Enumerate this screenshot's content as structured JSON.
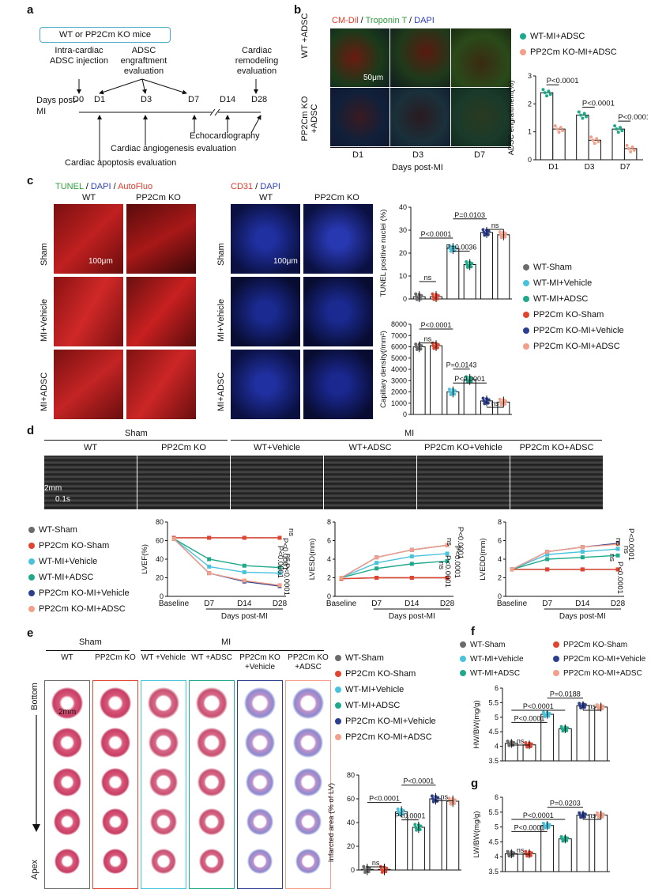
{
  "colors": {
    "wt_sham": "#6b6b6b",
    "ko_sham": "#e2452f",
    "wt_vehicle": "#49c3dd",
    "wt_adsc": "#1fa98a",
    "ko_vehicle": "#2c3f8f",
    "ko_adsc": "#f2a08a"
  },
  "panel_a": {
    "label": "a",
    "box_title": "WT or PP2Cm KO mice",
    "event_injection": "Intra-cardiac ADSC injection",
    "event_engraft": "ADSC engraftment evaluation",
    "event_remodel": "Cardiac remodeling evaluation",
    "days_label": "Days post-MI",
    "days": [
      "D0",
      "D1",
      "D3",
      "D7",
      "D14",
      "D28"
    ],
    "echo": "Echocardiography",
    "angio": "Cardiac angiogenesis evaluation",
    "apop": "Cardiac apoptosis evaluation"
  },
  "panel_b": {
    "label": "b",
    "stain_cm": "CM-Dil",
    "stain_trop": "Troponin T",
    "stain_dapi": "DAPI",
    "row_wt": "WT +ADSC",
    "row_ko": "PP2Cm KO +ADSC",
    "cols": [
      "D1",
      "D3",
      "D7"
    ],
    "xlabel": "Days post-MI",
    "scale": "50μm",
    "legend": [
      "WT-MI+ADSC",
      "PP2Cm KO-MI+ADSC"
    ]
  },
  "panel_c": {
    "label": "c",
    "tunel": "TUNEL",
    "dapi": "DAPI",
    "autofluo": "AutoFluo",
    "cd31": "CD31",
    "cols": [
      "WT",
      "PP2Cm KO"
    ],
    "rows": [
      "Sham",
      "MI+Vehicle",
      "MI+ADSC"
    ],
    "scale": "100μm",
    "legend": [
      "WT-Sham",
      "WT-MI+Vehicle",
      "WT-MI+ADSC",
      "PP2Cm KO-Sham",
      "PP2Cm KO-MI+Vehicle",
      "PP2Cm KO-MI+ADSC"
    ]
  },
  "panel_d": {
    "label": "d",
    "sham": "Sham",
    "mi": "MI",
    "cols": [
      "WT",
      "PP2Cm KO",
      "WT+Vehicle",
      "WT+ADSC",
      "PP2Cm KO+Vehicle",
      "PP2Cm KO+ADSC"
    ],
    "scale_mm": "2mm",
    "scale_s": "0.1s",
    "legend": [
      "WT-Sham",
      "PP2Cm KO-Sham",
      "WT-MI+Vehicle",
      "WT-MI+ADSC",
      "PP2Cm KO-MI+Vehicle",
      "PP2Cm KO-MI+ADSC"
    ]
  },
  "panel_e": {
    "label": "e",
    "sham": "Sham",
    "mi": "MI",
    "cols": [
      "WT",
      "PP2Cm KO",
      "WT +Vehicle",
      "WT +ADSC",
      "PP2Cm KO +Vehicle",
      "PP2Cm KO +ADSC"
    ],
    "bottom": "Bottom",
    "apex": "Apex",
    "scale": "2mm",
    "legend": [
      "WT-Sham",
      "PP2Cm KO-Sham",
      "WT-MI+Vehicle",
      "WT-MI+ADSC",
      "PP2Cm KO-MI+Vehicle",
      "PP2Cm KO-MI+ADSC"
    ]
  },
  "panel_f": {
    "label": "f",
    "legend": [
      "WT-Sham",
      "PP2Cm KO-Sham",
      "WT-MI+Vehicle",
      "PP2Cm KO-MI+Vehicle",
      "WT-MI+ADSC",
      "PP2Cm KO-MI+ADSC"
    ]
  },
  "panel_g": {
    "label": "g"
  },
  "chart_data": [
    {
      "id": "adsc",
      "type": "bar",
      "ylabel": "ADSC engraftment(%)",
      "ylim": [
        0,
        3
      ],
      "yticks": [
        0,
        1,
        2,
        3
      ],
      "categories": [
        "D1",
        "D3",
        "D7"
      ],
      "series": [
        {
          "name": "WT-MI+ADSC",
          "values": [
            2.4,
            1.6,
            1.1
          ]
        },
        {
          "name": "PP2Cm KO-MI+ADSC",
          "values": [
            1.1,
            0.7,
            0.4
          ]
        }
      ],
      "annotations": [
        "P<0.0001",
        "P<0.0001",
        "P<0.0001"
      ]
    },
    {
      "id": "tunel",
      "type": "bar",
      "ylabel": "TUNEL positive nuclei (%)",
      "ylim": [
        0,
        40
      ],
      "yticks": [
        0,
        10,
        20,
        30,
        40
      ],
      "categories": [
        "WT-Sham",
        "PP2Cm KO-Sham",
        "WT-MI+Vehicle",
        "WT-MI+ADSC",
        "PP2Cm KO-MI+Vehicle",
        "PP2Cm KO-MI+ADSC"
      ],
      "values": [
        1,
        1,
        22,
        15,
        29,
        28
      ],
      "annotations": [
        "ns",
        "P<0.0001",
        "P=0.0036",
        "P=0.0103",
        "ns"
      ]
    },
    {
      "id": "cap",
      "type": "bar",
      "ylabel": "Capillary density(/mm²)",
      "ylim": [
        0,
        8000
      ],
      "yticks": [
        0,
        1000,
        2000,
        3000,
        4000,
        5000,
        6000,
        7000,
        8000
      ],
      "categories": [
        "WT-Sham",
        "PP2Cm KO-Sham",
        "WT-MI+Vehicle",
        "WT-MI+ADSC",
        "PP2Cm KO-MI+Vehicle",
        "PP2Cm KO-MI+ADSC"
      ],
      "values": [
        6000,
        6100,
        2000,
        3100,
        1200,
        1100
      ],
      "annotations": [
        "P<0.0001",
        "ns",
        "P=0.0143",
        "P<0.0001",
        "ns"
      ]
    },
    {
      "id": "lvef",
      "type": "line",
      "ylabel": "LVEF(%)",
      "xlabel": "Days post-MI",
      "ylim": [
        0,
        80
      ],
      "yticks": [
        0,
        20,
        40,
        60,
        80
      ],
      "x": [
        "Baseline",
        "D7",
        "D14",
        "D28"
      ],
      "series": [
        {
          "name": "WT-Sham",
          "values": [
            63,
            63,
            63,
            63
          ]
        },
        {
          "name": "PP2Cm KO-Sham",
          "values": [
            63,
            63,
            63,
            63
          ]
        },
        {
          "name": "WT-MI+Vehicle",
          "values": [
            62,
            32,
            26,
            25
          ]
        },
        {
          "name": "WT-MI+ADSC",
          "values": [
            62,
            40,
            33,
            31
          ]
        },
        {
          "name": "PP2Cm KO-MI+Vehicle",
          "values": [
            62,
            25,
            16,
            11
          ]
        },
        {
          "name": "PP2Cm KO-MI+ADSC",
          "values": [
            62,
            25,
            17,
            12
          ]
        }
      ],
      "annotations": [
        "ns",
        "P<0.0001",
        "P<0.0001",
        "ns",
        "P<0.0001"
      ]
    },
    {
      "id": "lvesd",
      "type": "line",
      "ylabel": "LVESD(mm)",
      "xlabel": "Days post-MI",
      "ylim": [
        0,
        8
      ],
      "yticks": [
        0,
        2,
        4,
        6,
        8
      ],
      "x": [
        "Baseline",
        "D7",
        "D14",
        "D28"
      ],
      "series": [
        {
          "name": "WT-Sham",
          "values": [
            1.9,
            2.0,
            2.0,
            2.0
          ]
        },
        {
          "name": "PP2Cm KO-Sham",
          "values": [
            1.9,
            2.0,
            2.0,
            2.0
          ]
        },
        {
          "name": "WT-MI+Vehicle",
          "values": [
            2.0,
            3.6,
            4.3,
            4.6
          ]
        },
        {
          "name": "WT-MI+ADSC",
          "values": [
            2.0,
            3.0,
            3.5,
            3.8
          ]
        },
        {
          "name": "PP2Cm KO-MI+Vehicle",
          "values": [
            2.0,
            4.2,
            5.0,
            5.5
          ]
        },
        {
          "name": "PP2Cm KO-MI+ADSC",
          "values": [
            2.0,
            4.2,
            5.0,
            5.5
          ]
        }
      ],
      "annotations": [
        "P<0.0001",
        "ns",
        "ns",
        "P<0.0001",
        "P<0.0001"
      ]
    },
    {
      "id": "lvedd",
      "type": "line",
      "ylabel": "LVEDD(mm)",
      "xlabel": "Days post-MI",
      "ylim": [
        0,
        8
      ],
      "yticks": [
        0,
        2,
        4,
        6,
        8
      ],
      "x": [
        "Baseline",
        "D7",
        "D14",
        "D28"
      ],
      "series": [
        {
          "name": "WT-Sham",
          "values": [
            2.9,
            2.9,
            2.9,
            2.9
          ]
        },
        {
          "name": "PP2Cm KO-Sham",
          "values": [
            2.9,
            2.9,
            2.9,
            2.9
          ]
        },
        {
          "name": "WT-MI+Vehicle",
          "values": [
            2.9,
            4.5,
            4.8,
            5.1
          ]
        },
        {
          "name": "WT-MI+ADSC",
          "values": [
            2.9,
            4.0,
            4.2,
            4.4
          ]
        },
        {
          "name": "PP2Cm KO-MI+Vehicle",
          "values": [
            2.9,
            4.8,
            5.3,
            5.7
          ]
        },
        {
          "name": "PP2Cm KO-MI+ADSC",
          "values": [
            2.9,
            4.8,
            5.3,
            5.6
          ]
        }
      ],
      "annotations": [
        "P<0.0001",
        "ns",
        "ns",
        "P<0.0001",
        "ns"
      ]
    },
    {
      "id": "infarct",
      "type": "bar",
      "ylabel": "Infarcted area (% of LV)",
      "ylim": [
        0,
        80
      ],
      "yticks": [
        0,
        20,
        40,
        60,
        80
      ],
      "categories": [
        "WT-Sham",
        "PP2Cm KO-Sham",
        "WT-MI+Vehicle",
        "WT-MI+ADSC",
        "PP2Cm KO-MI+Vehicle",
        "PP2Cm KO-MI+ADSC"
      ],
      "values": [
        0.5,
        0.5,
        49,
        36,
        60,
        58
      ],
      "annotations": [
        "ns",
        "P<0.0001",
        "P<0.0001",
        "P<0.0001",
        "ns"
      ]
    },
    {
      "id": "hwbw",
      "type": "bar",
      "ylabel": "HW/BW(mg/g)",
      "ylim": [
        3.5,
        6.0
      ],
      "yticks": [
        3.5,
        4.0,
        4.5,
        5.0,
        5.5,
        6.0
      ],
      "categories": [
        "WT-Sham",
        "PP2Cm KO-Sham",
        "WT-MI+Vehicle",
        "WT-MI+ADSC",
        "PP2Cm KO-MI+Vehicle",
        "PP2Cm KO-MI+ADSC"
      ],
      "values": [
        4.1,
        4.05,
        5.1,
        4.6,
        5.4,
        5.35
      ],
      "annotations": [
        "ns",
        "P<0.0001",
        "P<0.0001",
        "P=0.0188",
        "ns"
      ]
    },
    {
      "id": "lwbw",
      "type": "bar",
      "ylabel": "LW/BW(mg/g)",
      "ylim": [
        3.5,
        6.0
      ],
      "yticks": [
        3.5,
        4.0,
        4.5,
        5.0,
        5.5,
        6.0
      ],
      "categories": [
        "WT-Sham",
        "PP2Cm KO-Sham",
        "WT-MI+Vehicle",
        "WT-MI+ADSC",
        "PP2Cm KO-MI+Vehicle",
        "PP2Cm KO-MI+ADSC"
      ],
      "values": [
        4.1,
        4.1,
        5.05,
        4.6,
        5.4,
        5.4
      ],
      "annotations": [
        "ns",
        "P<0.0001",
        "P<0.0001",
        "P=0.0203",
        "ns"
      ]
    }
  ]
}
